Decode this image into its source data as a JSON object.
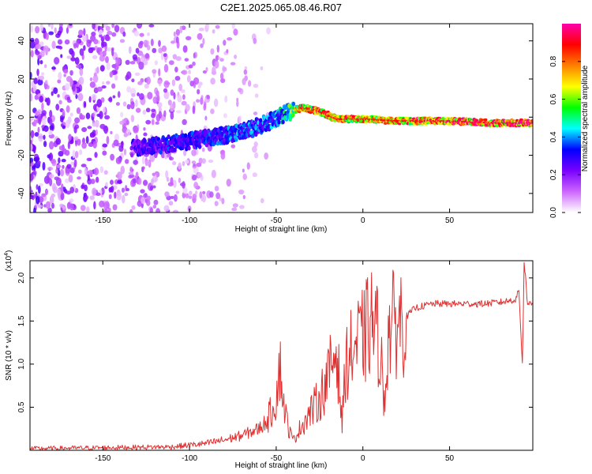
{
  "figure": {
    "title": "C2E1.2025.065.08.46.R07"
  },
  "chart_data": [
    {
      "type": "heatmap",
      "xlabel": "Height of straight line (km)",
      "ylabel": "Frequency (Hz)",
      "xlim": [
        -192,
        98
      ],
      "ylim": [
        -50,
        49
      ],
      "x_ticks": [
        -150,
        -100,
        -50,
        0,
        50
      ],
      "y_ticks": [
        -40,
        -20,
        0,
        20,
        40
      ],
      "colorbar": {
        "label": "Normalized spectral amplitude",
        "range": [
          0,
          1
        ],
        "ticks": [
          "0.0",
          "0.2",
          "0.4",
          "0.6",
          "0.8"
        ],
        "tick_values": [
          0,
          0.2,
          0.4,
          0.6,
          0.8
        ],
        "colors": [
          "#ffffff",
          "#cc66ff",
          "#7a00ff",
          "#0000ff",
          "#00ffff",
          "#00ff00",
          "#ffff00",
          "#ff8000",
          "#ff0000",
          "#ff00aa"
        ]
      },
      "ridge": [
        {
          "x": -130,
          "freq": -16,
          "amp": 0.3
        },
        {
          "x": -110,
          "freq": -14,
          "amp": 0.35
        },
        {
          "x": -90,
          "freq": -11,
          "amp": 0.35
        },
        {
          "x": -70,
          "freq": -8,
          "amp": 0.4
        },
        {
          "x": -55,
          "freq": -3,
          "amp": 0.4
        },
        {
          "x": -45,
          "freq": 2,
          "amp": 0.5
        },
        {
          "x": -35,
          "freq": 5,
          "amp": 0.85
        },
        {
          "x": -25,
          "freq": 3,
          "amp": 0.9
        },
        {
          "x": -15,
          "freq": -1,
          "amp": 0.9
        },
        {
          "x": 0,
          "freq": -1,
          "amp": 0.85
        },
        {
          "x": 20,
          "freq": -2,
          "amp": 0.9
        },
        {
          "x": 50,
          "freq": -2,
          "amp": 0.95
        },
        {
          "x": 75,
          "freq": -3,
          "amp": 0.95
        },
        {
          "x": 95,
          "freq": -3,
          "amp": 1.0
        }
      ]
    },
    {
      "type": "line",
      "xlabel": "Height of straight line (km)",
      "ylabel": "SNR (10 * v/v)",
      "y_exponent_label": "(x10",
      "y_exponent": "4",
      "xlim": [
        -192,
        98
      ],
      "ylim": [
        0,
        2.2
      ],
      "x_ticks": [
        -150,
        -100,
        -50,
        0,
        50
      ],
      "y_ticks": [
        0.5,
        1.0,
        1.5,
        2.0
      ],
      "y_tick_labels": [
        "0.5",
        "1.0",
        "1.5",
        "2.0"
      ],
      "line_color": "#e03030",
      "series": [
        {
          "x": [
            -192,
            -150,
            -110,
            -100,
            -90,
            -80,
            -70,
            -60,
            -55,
            -50,
            -48,
            -46,
            -44,
            -42,
            -40,
            -35,
            -30,
            -25,
            -20,
            -15,
            -12,
            -10,
            -5,
            0,
            5,
            10,
            12,
            15,
            20,
            25,
            30,
            40,
            50,
            60,
            70,
            80,
            88,
            90,
            92,
            93,
            95,
            98
          ],
          "values": [
            0.02,
            0.03,
            0.04,
            0.06,
            0.08,
            0.12,
            0.17,
            0.25,
            0.35,
            0.6,
            1.0,
            0.6,
            0.35,
            0.2,
            0.12,
            0.3,
            0.45,
            0.6,
            0.85,
            1.2,
            0.3,
            1.0,
            1.2,
            1.3,
            1.5,
            1.25,
            0.5,
            1.4,
            1.5,
            1.55,
            1.65,
            1.7,
            1.7,
            1.7,
            1.7,
            1.72,
            1.75,
            1.85,
            1.0,
            2.2,
            1.7,
            1.7
          ]
        }
      ]
    }
  ]
}
